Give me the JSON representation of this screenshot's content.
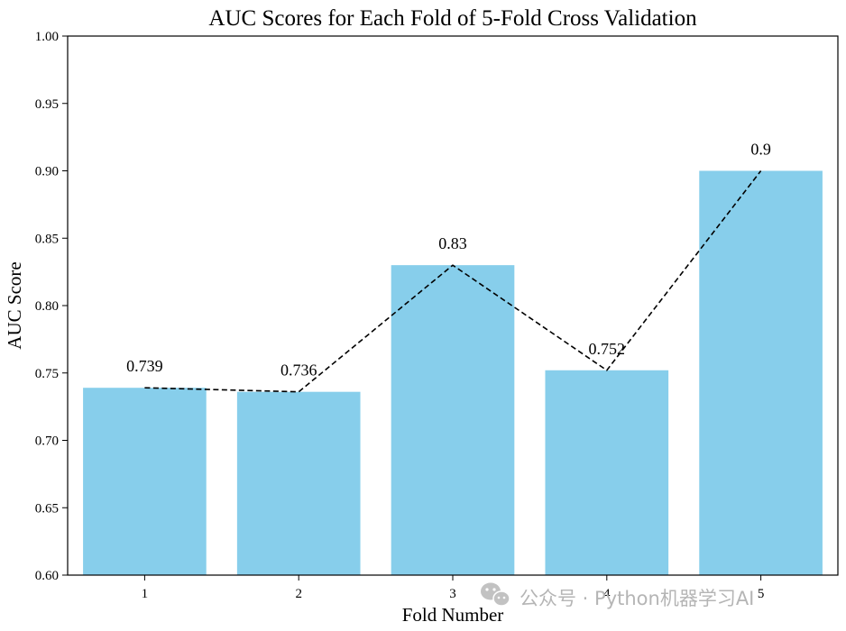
{
  "chart_data": {
    "type": "bar",
    "title": "AUC Scores for Each Fold of 5-Fold Cross Validation",
    "xlabel": "Fold Number",
    "ylabel": "AUC Score",
    "categories": [
      "1",
      "2",
      "3",
      "4",
      "5"
    ],
    "values": [
      0.739,
      0.736,
      0.83,
      0.752,
      0.9
    ],
    "value_labels": [
      "0.739",
      "0.736",
      "0.83",
      "0.752",
      "0.9"
    ],
    "ylim": [
      0.6,
      1.0
    ],
    "yticks": [
      "0.60",
      "0.65",
      "0.70",
      "0.75",
      "0.80",
      "0.85",
      "0.90",
      "0.95",
      "1.00"
    ],
    "bar_color": "#87CEEB",
    "line": {
      "style": "dashed",
      "color": "#000000",
      "values": [
        0.739,
        0.736,
        0.83,
        0.752,
        0.9
      ]
    },
    "grid": false,
    "legend": "none"
  },
  "watermark": {
    "icon": "wechat-icon",
    "text": "公众号 · Python机器学习AI",
    "color": "#b5b5b5"
  }
}
